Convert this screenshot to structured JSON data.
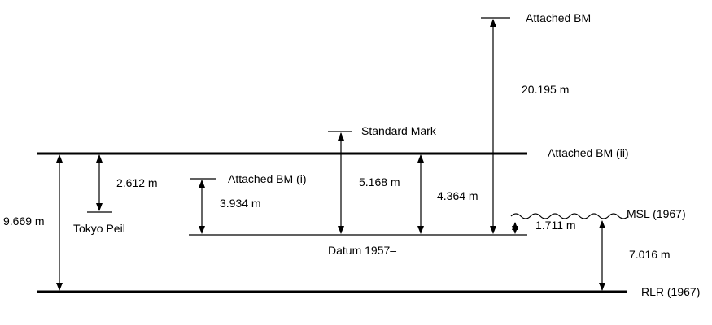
{
  "labels": {
    "attached_bm_top": "Attached BM",
    "standard_mark": "Standard Mark",
    "attached_bm_ii": "Attached BM (ii)",
    "attached_bm_i": "Attached BM (i)",
    "tokyo_peil": "Tokyo Peil",
    "datum": "Datum 1957–",
    "msl": "MSL (1967)",
    "rlr": "RLR (1967)"
  },
  "measurements": {
    "bm_top_to_datum": "20.195 m",
    "rlr_to_bm_ii": "9.669 m",
    "bm_ii_to_tokyo_peil": "2.612 m",
    "bm_i_to_datum": "3.934 m",
    "standard_mark_to_datum": "5.168 m",
    "bm_ii_to_datum": "4.364 m",
    "msl_to_datum": "1.711 m",
    "rlr_to_msl": "7.016 m"
  }
}
